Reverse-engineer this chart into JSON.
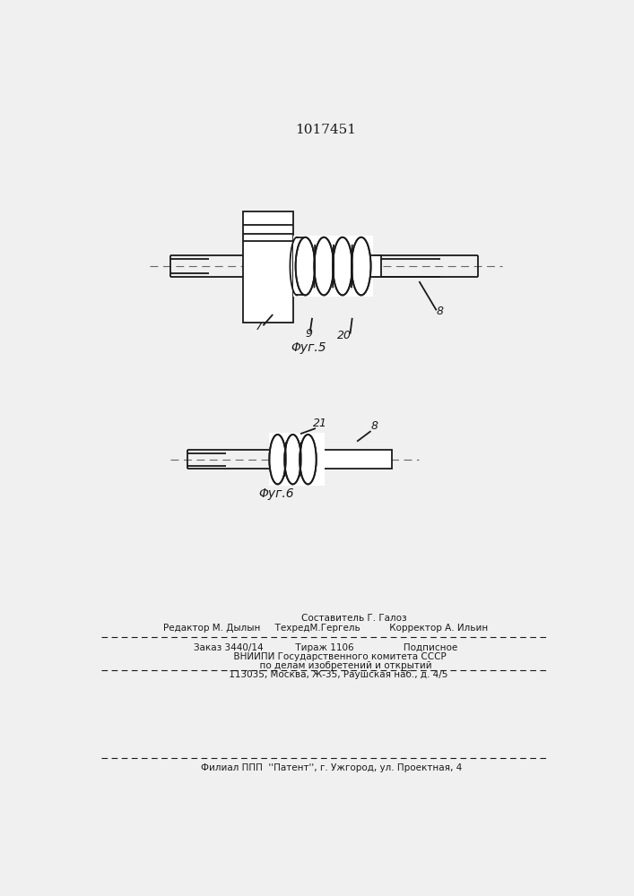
{
  "title": "1017451",
  "background_color": "#f0f0f0",
  "line_color": "#1a1a1a",
  "fig5_label": "Φуг.5",
  "fig6_label": "Φуг.6",
  "label7": "7",
  "label8": "8",
  "label8b": "8",
  "label9": "9",
  "label20": "20",
  "label21": "21",
  "footer_line1": "                    Составитель Г. Галоз",
  "footer_line2": "Редактор М. Дылын     ТехредМ.Гергель          Корректор А. Ильин",
  "footer_line3": "Заказ 3440/14           Тираж 1106                 Подписное",
  "footer_line4": "          ВНИИПИ Государственного комитета СССР",
  "footer_line5": "              по делам изобретений и открытий",
  "footer_line6": "         113035, Москва, Ж-35, Раушская наб., д. 4/5",
  "footer_line7": "    Филиал ППП  ''Патент'', г. Ужгород, ул. Проектная, 4"
}
